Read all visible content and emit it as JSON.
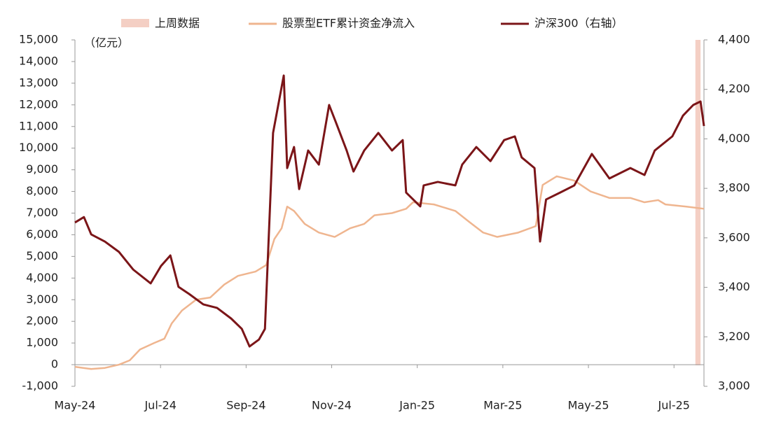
{
  "chart_data": {
    "type": "line",
    "unit_label": "（亿元）",
    "xlim": [
      0,
      14.7
    ],
    "xticks": [
      {
        "value": 0,
        "label": "May-24"
      },
      {
        "value": 2,
        "label": "Jul-24"
      },
      {
        "value": 4,
        "label": "Sep-24"
      },
      {
        "value": 6,
        "label": "Nov-24"
      },
      {
        "value": 8,
        "label": "Jan-25"
      },
      {
        "value": 10,
        "label": "Mar-25"
      },
      {
        "value": 12,
        "label": "May-25"
      },
      {
        "value": 14,
        "label": "Jul-25"
      }
    ],
    "ylim": [
      -1000,
      15000
    ],
    "yticks": [
      {
        "value": -1000,
        "label": "-1,000"
      },
      0,
      {
        "value": 1000,
        "label": "1,000"
      },
      {
        "value": 2000,
        "label": "2,000"
      },
      {
        "value": 3000,
        "label": "3,000"
      },
      {
        "value": 4000,
        "label": "4,000"
      },
      {
        "value": 5000,
        "label": "5,000"
      },
      {
        "value": 6000,
        "label": "6,000"
      },
      {
        "value": 7000,
        "label": "7,000"
      },
      {
        "value": 8000,
        "label": "8,000"
      },
      {
        "value": 9000,
        "label": "9,000"
      },
      {
        "value": 10000,
        "label": "10,000"
      },
      {
        "value": 11000,
        "label": "11,000"
      },
      {
        "value": 12000,
        "label": "12,000"
      },
      {
        "value": 13000,
        "label": "13,000"
      },
      {
        "value": 14000,
        "label": "14,000"
      },
      {
        "value": 15000,
        "label": "15,000"
      }
    ],
    "y2lim": [
      3000,
      4400
    ],
    "y2ticks": [
      {
        "value": 3000,
        "label": "3,000"
      },
      {
        "value": 3200,
        "label": "3,200"
      },
      {
        "value": 3400,
        "label": "3,400"
      },
      {
        "value": 3600,
        "label": "3,600"
      },
      {
        "value": 3800,
        "label": "3,800"
      },
      {
        "value": 4000,
        "label": "4,000"
      },
      {
        "value": 4200,
        "label": "4,200"
      },
      {
        "value": 4400,
        "label": "4,400"
      }
    ],
    "highlight": {
      "name": "上周数据",
      "color": "#f4cfc4",
      "x": [
        14.5,
        14.62
      ]
    },
    "series": [
      {
        "name": "股票型ETF累计资金净流入",
        "color": "#efb58f",
        "x": [
          0,
          0.38,
          0.7,
          1.03,
          1.28,
          1.52,
          1.85,
          2.09,
          2.26,
          2.5,
          2.83,
          3.16,
          3.49,
          3.81,
          4.22,
          4.47,
          4.66,
          4.83,
          4.96,
          5.12,
          5.37,
          5.7,
          6.07,
          6.43,
          6.76,
          7.0,
          7.41,
          7.74,
          7.9,
          8.39,
          8.89,
          9.21,
          9.54,
          9.87,
          10.36,
          10.77,
          10.93,
          11.26,
          11.67,
          12.05,
          12.49,
          12.98,
          13.31,
          13.63,
          13.8,
          14.29,
          14.7
        ],
        "values": [
          -100,
          -200,
          -150,
          0,
          200,
          700,
          1000,
          1200,
          1900,
          2500,
          3000,
          3100,
          3700,
          4100,
          4300,
          4600,
          5800,
          6300,
          7300,
          7100,
          6500,
          6100,
          5900,
          6300,
          6500,
          6900,
          7000,
          7200,
          7500,
          7400,
          7100,
          6600,
          6100,
          5900,
          6100,
          6400,
          8300,
          8700,
          8500,
          8000,
          7700,
          7700,
          7500,
          7600,
          7400,
          7300,
          7200
        ]
      },
      {
        "name": "沪深300（右轴）",
        "color": "#7b1518",
        "axis": "y2",
        "x": [
          0,
          0.21,
          0.38,
          0.7,
          1.03,
          1.36,
          1.77,
          2.01,
          2.23,
          2.42,
          2.67,
          3.0,
          3.32,
          3.65,
          3.9,
          4.08,
          4.3,
          4.44,
          4.63,
          4.88,
          4.96,
          5.12,
          5.24,
          5.45,
          5.7,
          5.94,
          6.1,
          6.35,
          6.51,
          6.76,
          7.09,
          7.41,
          7.66,
          7.74,
          8.07,
          8.15,
          8.48,
          8.89,
          9.05,
          9.38,
          9.71,
          10.03,
          10.28,
          10.44,
          10.74,
          10.87,
          11.01,
          11.34,
          11.67,
          12.08,
          12.49,
          12.98,
          13.31,
          13.55,
          13.96,
          14.21,
          14.45,
          14.62,
          14.7
        ],
        "values": [
          3662,
          3684,
          3614,
          3585,
          3543,
          3472,
          3416,
          3486,
          3529,
          3402,
          3373,
          3331,
          3317,
          3274,
          3232,
          3161,
          3189,
          3232,
          4024,
          4256,
          3882,
          3967,
          3797,
          3953,
          3896,
          4137,
          4066,
          3953,
          3868,
          3953,
          4024,
          3953,
          3995,
          3783,
          3727,
          3812,
          3826,
          3812,
          3896,
          3967,
          3910,
          3995,
          4010,
          3925,
          3882,
          3585,
          3755,
          3783,
          3812,
          3939,
          3840,
          3882,
          3854,
          3953,
          4010,
          4094,
          4137,
          4151,
          4052
        ]
      }
    ]
  }
}
